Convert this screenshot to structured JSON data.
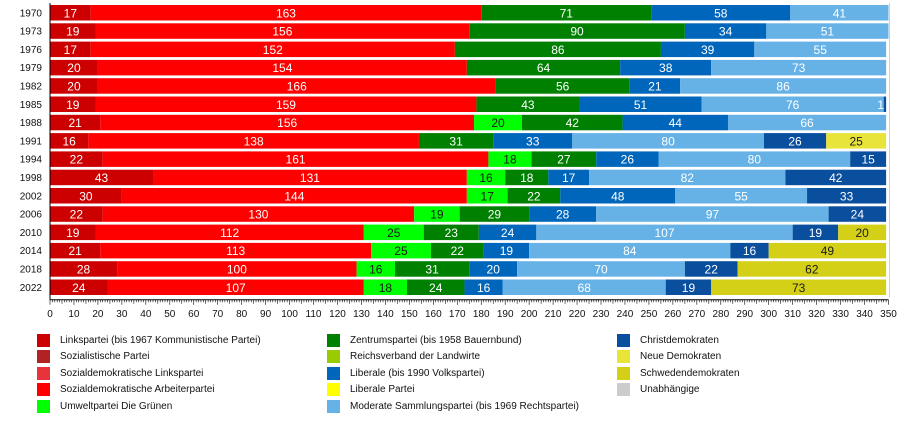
{
  "chart_data": {
    "type": "bar",
    "orientation": "horizontal",
    "stacked": true,
    "title": "",
    "xlabel": "",
    "ylabel": "",
    "xlim": [
      0,
      350
    ],
    "x_ticks": [
      0,
      10,
      20,
      30,
      40,
      50,
      60,
      70,
      80,
      90,
      100,
      110,
      120,
      130,
      140,
      150,
      160,
      170,
      180,
      190,
      200,
      210,
      220,
      230,
      240,
      250,
      260,
      270,
      280,
      290,
      300,
      310,
      320,
      330,
      340,
      350
    ],
    "grid": false,
    "legend_position": "bottom",
    "categories": [
      "1970",
      "1973",
      "1976",
      "1979",
      "1982",
      "1985",
      "1988",
      "1991",
      "1994",
      "1998",
      "2002",
      "2006",
      "2010",
      "2014",
      "2018",
      "2022"
    ],
    "parties": [
      {
        "key": "V",
        "name": "Linkspartei (bis 1967 Kommunistische Partei)",
        "color": "#CC0000",
        "text_color": "#ffffff"
      },
      {
        "key": "SP",
        "name": "Sozialistische Partei",
        "color": "#B22222",
        "text_color": "#ffffff"
      },
      {
        "key": "SDL",
        "name": "Sozialdemokratische Linkspartei",
        "color": "#E8333A",
        "text_color": "#ffffff"
      },
      {
        "key": "S",
        "name": "Sozialdemokratische Arbeiterpartei",
        "color": "#FF0000",
        "text_color": "#ffffff"
      },
      {
        "key": "MP",
        "name": "Umweltpartei Die Grünen",
        "color": "#00FF00",
        "text_color": "#1a1a1a"
      },
      {
        "key": "C",
        "name": "Zentrumspartei (bis 1958 Bauernbund)",
        "color": "#008000",
        "text_color": "#ffffff"
      },
      {
        "key": "RL",
        "name": "Reichsverband der Landwirte",
        "color": "#99CC00",
        "text_color": "#1a1a1a"
      },
      {
        "key": "L",
        "name": "Liberale (bis 1990 Volkspartei)",
        "color": "#0066BB",
        "text_color": "#ffffff"
      },
      {
        "key": "LP",
        "name": "Liberale Partei",
        "color": "#FFFF00",
        "text_color": "#1a1a1a"
      },
      {
        "key": "M",
        "name": "Moderate Sammlungspartei (bis 1969 Rechtspartei)",
        "color": "#66B2E6",
        "text_color": "#ffffff"
      },
      {
        "key": "KD",
        "name": "Christdemokraten",
        "color": "#0A4E9E",
        "text_color": "#ffffff"
      },
      {
        "key": "NyD",
        "name": "Neue Demokraten",
        "color": "#E8E43A",
        "text_color": "#1a1a1a"
      },
      {
        "key": "SD",
        "name": "Schwedendemokraten",
        "color": "#D4D018",
        "text_color": "#1a1a1a"
      },
      {
        "key": "U",
        "name": "Unabhängige",
        "color": "#CCCCCC",
        "text_color": "#1a1a1a"
      }
    ],
    "rows": [
      {
        "year": "1970",
        "segments": [
          [
            "V",
            17
          ],
          [
            "S",
            163
          ],
          [
            "C",
            71
          ],
          [
            "L",
            58
          ],
          [
            "M",
            41
          ]
        ]
      },
      {
        "year": "1973",
        "segments": [
          [
            "V",
            19
          ],
          [
            "S",
            156
          ],
          [
            "C",
            90
          ],
          [
            "L",
            34
          ],
          [
            "M",
            51
          ]
        ]
      },
      {
        "year": "1976",
        "segments": [
          [
            "V",
            17
          ],
          [
            "S",
            152
          ],
          [
            "C",
            86
          ],
          [
            "L",
            39
          ],
          [
            "M",
            55
          ]
        ]
      },
      {
        "year": "1979",
        "segments": [
          [
            "V",
            20
          ],
          [
            "S",
            154
          ],
          [
            "C",
            64
          ],
          [
            "L",
            38
          ],
          [
            "M",
            73
          ]
        ]
      },
      {
        "year": "1982",
        "segments": [
          [
            "V",
            20
          ],
          [
            "S",
            166
          ],
          [
            "C",
            56
          ],
          [
            "L",
            21
          ],
          [
            "M",
            86
          ]
        ]
      },
      {
        "year": "1985",
        "segments": [
          [
            "V",
            19
          ],
          [
            "S",
            159
          ],
          [
            "C",
            43
          ],
          [
            "L",
            51
          ],
          [
            "M",
            76
          ],
          [
            "KD",
            1
          ]
        ]
      },
      {
        "year": "1988",
        "segments": [
          [
            "V",
            21
          ],
          [
            "S",
            156
          ],
          [
            "MP",
            20
          ],
          [
            "C",
            42
          ],
          [
            "L",
            44
          ],
          [
            "M",
            66
          ]
        ]
      },
      {
        "year": "1991",
        "segments": [
          [
            "V",
            16
          ],
          [
            "S",
            138
          ],
          [
            "C",
            31
          ],
          [
            "L",
            33
          ],
          [
            "M",
            80
          ],
          [
            "KD",
            26
          ],
          [
            "NyD",
            25
          ]
        ]
      },
      {
        "year": "1994",
        "segments": [
          [
            "V",
            22
          ],
          [
            "S",
            161
          ],
          [
            "MP",
            18
          ],
          [
            "C",
            27
          ],
          [
            "L",
            26
          ],
          [
            "M",
            80
          ],
          [
            "KD",
            15
          ]
        ]
      },
      {
        "year": "1998",
        "segments": [
          [
            "V",
            43
          ],
          [
            "S",
            131
          ],
          [
            "MP",
            16
          ],
          [
            "C",
            18
          ],
          [
            "L",
            17
          ],
          [
            "M",
            82
          ],
          [
            "KD",
            42
          ]
        ]
      },
      {
        "year": "2002",
        "segments": [
          [
            "V",
            30
          ],
          [
            "S",
            144
          ],
          [
            "MP",
            17
          ],
          [
            "C",
            22
          ],
          [
            "L",
            48
          ],
          [
            "M",
            55
          ],
          [
            "KD",
            33
          ]
        ]
      },
      {
        "year": "2006",
        "segments": [
          [
            "V",
            22
          ],
          [
            "S",
            130
          ],
          [
            "MP",
            19
          ],
          [
            "C",
            29
          ],
          [
            "L",
            28
          ],
          [
            "M",
            97
          ],
          [
            "KD",
            24
          ]
        ]
      },
      {
        "year": "2010",
        "segments": [
          [
            "V",
            19
          ],
          [
            "S",
            112
          ],
          [
            "MP",
            25
          ],
          [
            "C",
            23
          ],
          [
            "L",
            24
          ],
          [
            "M",
            107
          ],
          [
            "KD",
            19
          ],
          [
            "SD",
            20
          ]
        ]
      },
      {
        "year": "2014",
        "segments": [
          [
            "V",
            21
          ],
          [
            "S",
            113
          ],
          [
            "MP",
            25
          ],
          [
            "C",
            22
          ],
          [
            "L",
            19
          ],
          [
            "M",
            84
          ],
          [
            "KD",
            16
          ],
          [
            "SD",
            49
          ]
        ]
      },
      {
        "year": "2018",
        "segments": [
          [
            "V",
            28
          ],
          [
            "S",
            100
          ],
          [
            "MP",
            16
          ],
          [
            "C",
            31
          ],
          [
            "L",
            20
          ],
          [
            "M",
            70
          ],
          [
            "KD",
            22
          ],
          [
            "SD",
            62
          ]
        ]
      },
      {
        "year": "2022",
        "segments": [
          [
            "V",
            24
          ],
          [
            "S",
            107
          ],
          [
            "MP",
            18
          ],
          [
            "C",
            24
          ],
          [
            "L",
            16
          ],
          [
            "M",
            68
          ],
          [
            "KD",
            19
          ],
          [
            "SD",
            73
          ]
        ]
      }
    ]
  },
  "legend": {
    "columns": [
      [
        "V",
        "SP",
        "SDL",
        "S",
        "MP"
      ],
      [
        "C",
        "RL",
        "L",
        "LP",
        "M"
      ],
      [
        "KD",
        "NyD",
        "SD",
        "U"
      ]
    ]
  }
}
